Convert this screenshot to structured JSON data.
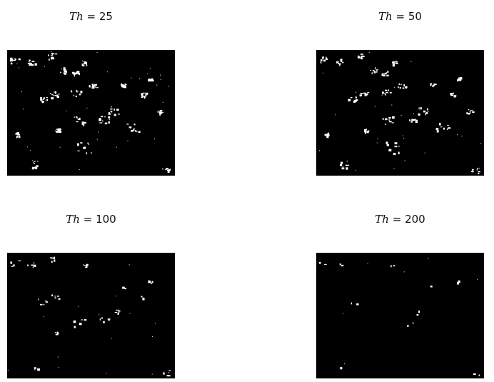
{
  "panels": [
    {
      "variable": "Th",
      "relation": "=",
      "value": "25",
      "density": 1.0
    },
    {
      "variable": "Th",
      "relation": "=",
      "value": "50",
      "density": 0.75
    },
    {
      "variable": "Th",
      "relation": "=",
      "value": "100",
      "density": 0.45
    },
    {
      "variable": "Th",
      "relation": "=",
      "value": "200",
      "density": 0.15
    }
  ],
  "colors": {
    "background": "#ffffff",
    "image": "#000000",
    "foreground": "#ffffff"
  }
}
